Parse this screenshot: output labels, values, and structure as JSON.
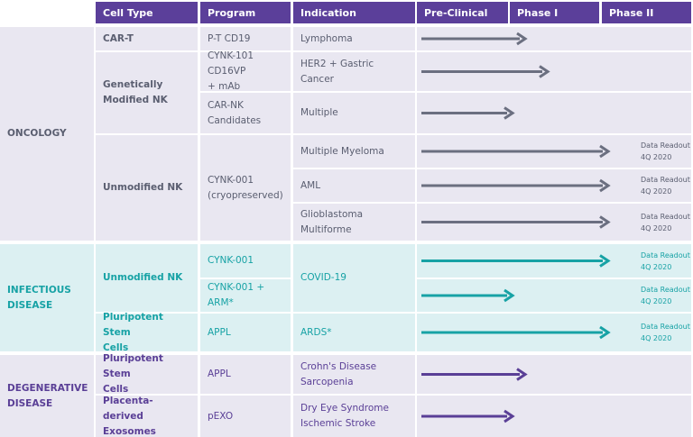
{
  "header": [
    "Cell Type",
    "Program",
    "Indication",
    "Pre-Clinical",
    "Phase I",
    "Phase II"
  ],
  "areas": [
    "ONCOLOGY",
    "INFECTIOUS\nDISEASE",
    "DEGENERATIVE\nDISEASE"
  ],
  "cell_types": [
    "CAR-T",
    "Genetically\nModified NK",
    "Unmodified NK",
    "Unmodified NK",
    "Pluripotent Stem\nCells",
    "Pluripotent Stem\nCells",
    "Placenta-derived\nExosomes"
  ],
  "programs": [
    "P-T CD19",
    "CYNK-101 CD16VP\n+ mAb",
    "CAR-NK\nCandidates",
    "CYNK-001\n(cryopreserved)",
    "CYNK-001",
    "CYNK-001 + ARM*",
    "APPL",
    "APPL",
    "pEXO"
  ],
  "indications": [
    "Lymphoma",
    "HER2 + Gastric Cancer",
    "Multiple",
    "Multiple Myeloma",
    "AML",
    "Glioblastoma\nMultiforme",
    "COVID-19",
    "ARDS*",
    "Crohn's Disease\nSarcopenia",
    "Dry Eye Syndrome\nIschemic Stroke"
  ],
  "notes": [
    "Data Readout\n4Q 2020",
    "Data Readout\n4Q 2020",
    "Data Readout\n4Q 2020",
    "Data Readout\n4Q 2020",
    "Data Readout\n4Q 2020",
    "Data Readout\n4Q 2020"
  ]
}
